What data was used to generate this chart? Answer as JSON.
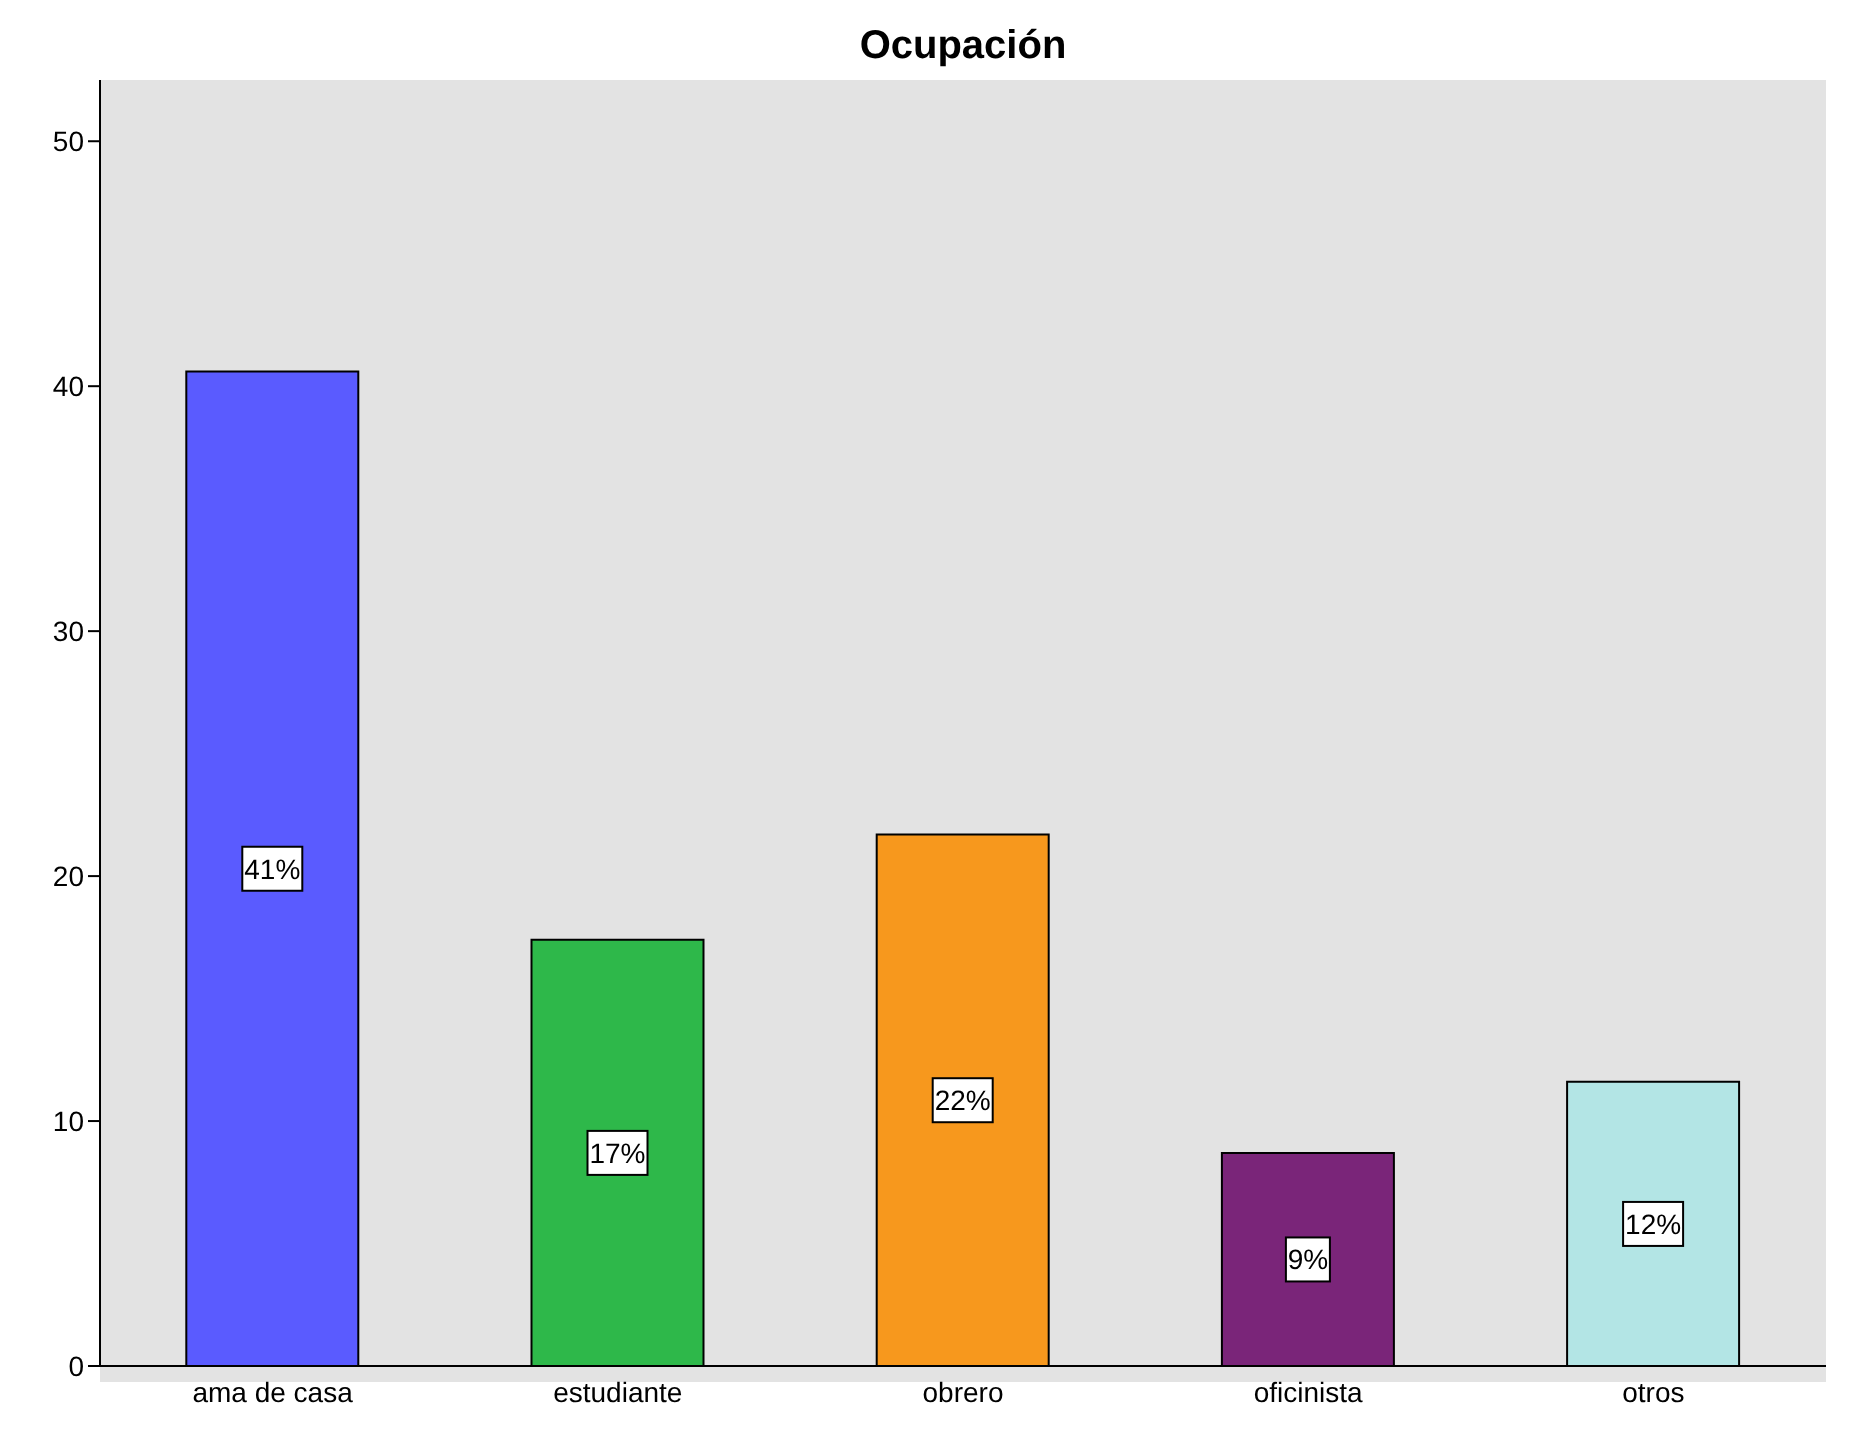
{
  "chart_data": {
    "type": "bar",
    "title": "Ocupación",
    "categories": [
      "ama de casa",
      "estudiante",
      "obrero",
      "oficinista",
      "otros"
    ],
    "values": [
      40.6,
      17.4,
      21.7,
      8.7,
      11.6
    ],
    "colors": [
      "#5a5bff",
      "#2eb84a",
      "#f7981d",
      "#7a2579",
      "#b3e5e5"
    ],
    "value_labels": [
      "41%",
      "17%",
      "22%",
      "9%",
      "12%"
    ],
    "ylim": [
      0,
      52.5
    ],
    "yticks": [
      0,
      10,
      20,
      30,
      40,
      50
    ]
  }
}
